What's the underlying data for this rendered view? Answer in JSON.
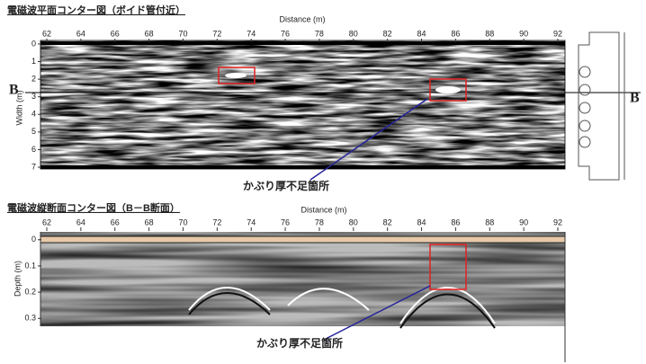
{
  "panels": [
    {
      "title": "電磁波平面コンター図（ボイド管付近）",
      "x_label": "Distance (m)",
      "y_label": "Width (m)",
      "xlim": [
        62,
        92
      ],
      "xticks": [
        62,
        64,
        66,
        68,
        70,
        72,
        74,
        76,
        78,
        80,
        82,
        84,
        86,
        88,
        90,
        92
      ],
      "ylim": [
        -0.2,
        7.1
      ],
      "yticks": [
        0,
        1,
        2,
        3,
        4,
        5,
        6,
        7
      ],
      "section_label": "B",
      "callout": "かぶり厚不足箇所"
    },
    {
      "title": "電磁波縦断面コンター図（B－B断面）",
      "x_label": "Distance (m)",
      "y_label": "Depth (m)",
      "xlim": [
        62,
        92
      ],
      "xticks": [
        62,
        64,
        66,
        68,
        70,
        72,
        74,
        76,
        78,
        80,
        82,
        84,
        86,
        88,
        90,
        92
      ],
      "ylim": [
        -0.03,
        0.33
      ],
      "yticks": [
        0,
        0.1,
        0.2,
        0.3
      ],
      "callout": "かぶり厚不足箇所"
    }
  ]
}
